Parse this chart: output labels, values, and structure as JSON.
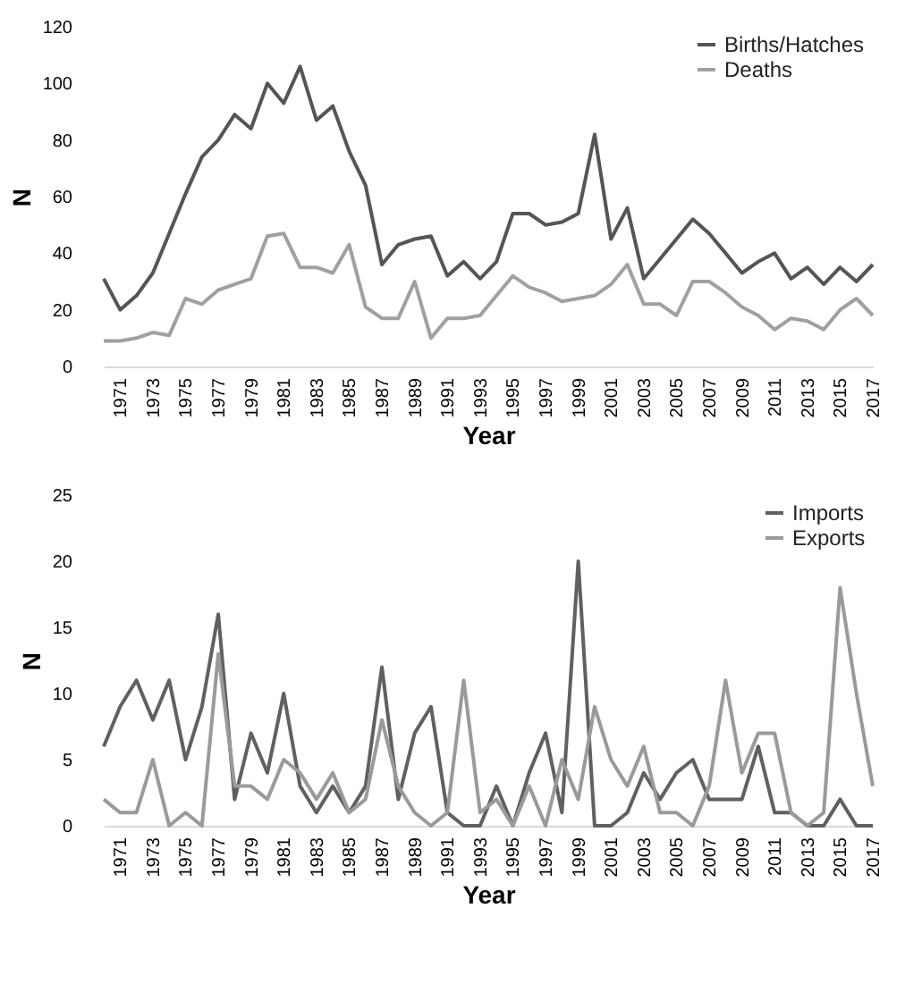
{
  "chart_data": [
    {
      "type": "line",
      "xlabel": "Year",
      "ylabel": "N",
      "x": [
        1970,
        1971,
        1972,
        1973,
        1974,
        1975,
        1976,
        1977,
        1978,
        1979,
        1980,
        1981,
        1982,
        1983,
        1984,
        1985,
        1986,
        1987,
        1988,
        1989,
        1990,
        1991,
        1992,
        1993,
        1994,
        1995,
        1996,
        1997,
        1998,
        1999,
        2000,
        2001,
        2002,
        2003,
        2004,
        2005,
        2006,
        2007,
        2008,
        2009,
        2010,
        2011,
        2012,
        2013,
        2014,
        2015,
        2016,
        2017
      ],
      "xlim": [
        1970,
        2017
      ],
      "xticks": [
        1971,
        1973,
        1975,
        1977,
        1979,
        1981,
        1983,
        1985,
        1987,
        1989,
        1991,
        1993,
        1995,
        1997,
        1999,
        2001,
        2003,
        2005,
        2007,
        2009,
        2011,
        2013,
        2015,
        2017
      ],
      "ylim": [
        0,
        120
      ],
      "yticks": [
        0,
        20,
        40,
        60,
        80,
        100,
        120
      ],
      "grid": false,
      "legend": "top right",
      "marker": "none",
      "line_style": "solid",
      "series": [
        {
          "name": "Births/Hatches",
          "color": "#555555",
          "values": [
            31,
            20,
            25,
            33,
            47,
            61,
            74,
            80,
            89,
            84,
            100,
            93,
            106,
            87,
            92,
            76,
            64,
            36,
            43,
            45,
            46,
            32,
            37,
            31,
            37,
            54,
            54,
            50,
            51,
            54,
            82,
            45,
            56,
            31,
            38,
            45,
            52,
            47,
            40,
            33,
            37,
            40,
            31,
            35,
            29,
            35,
            30,
            36
          ]
        },
        {
          "name": "Deaths",
          "color": "#a0a0a0",
          "values": [
            9,
            9,
            10,
            12,
            11,
            24,
            22,
            27,
            29,
            31,
            46,
            47,
            35,
            35,
            33,
            43,
            21,
            17,
            17,
            30,
            10,
            17,
            17,
            18,
            25,
            32,
            28,
            26,
            23,
            24,
            25,
            29,
            36,
            22,
            22,
            18,
            30,
            30,
            26,
            21,
            18,
            13,
            17,
            16,
            13,
            20,
            24,
            18
          ]
        }
      ]
    },
    {
      "type": "line",
      "xlabel": "Year",
      "ylabel": "N",
      "x": [
        1970,
        1971,
        1972,
        1973,
        1974,
        1975,
        1976,
        1977,
        1978,
        1979,
        1980,
        1981,
        1982,
        1983,
        1984,
        1985,
        1986,
        1987,
        1988,
        1989,
        1990,
        1991,
        1992,
        1993,
        1994,
        1995,
        1996,
        1997,
        1998,
        1999,
        2000,
        2001,
        2002,
        2003,
        2004,
        2005,
        2006,
        2007,
        2008,
        2009,
        2010,
        2011,
        2012,
        2013,
        2014,
        2015,
        2016,
        2017
      ],
      "xlim": [
        1970,
        2017
      ],
      "xticks": [
        1971,
        1973,
        1975,
        1977,
        1979,
        1981,
        1983,
        1985,
        1987,
        1989,
        1991,
        1993,
        1995,
        1997,
        1999,
        2001,
        2003,
        2005,
        2007,
        2009,
        2011,
        2013,
        2015,
        2017
      ],
      "ylim": [
        0,
        25
      ],
      "yticks": [
        0,
        5,
        10,
        15,
        20,
        25
      ],
      "grid": false,
      "legend": "top right",
      "marker": "none",
      "line_style": "solid",
      "series": [
        {
          "name": "Imports",
          "color": "#606060",
          "values": [
            6,
            9,
            11,
            8,
            11,
            5,
            9,
            16,
            2,
            7,
            4,
            10,
            3,
            1,
            3,
            1,
            3,
            12,
            2,
            7,
            9,
            1,
            0,
            0,
            3,
            0,
            4,
            7,
            1,
            20,
            0,
            0,
            1,
            4,
            2,
            4,
            5,
            2,
            2,
            2,
            6,
            1,
            1,
            0,
            0,
            2,
            0,
            0
          ]
        },
        {
          "name": "Exports",
          "color": "#9a9a9a",
          "values": [
            2,
            1,
            1,
            5,
            0,
            1,
            0,
            13,
            3,
            3,
            2,
            5,
            4,
            2,
            4,
            1,
            2,
            8,
            3,
            1,
            0,
            1,
            11,
            1,
            2,
            0,
            3,
            0,
            5,
            2,
            9,
            5,
            3,
            6,
            1,
            1,
            0,
            3,
            11,
            4,
            7,
            7,
            1,
            0,
            1,
            18,
            10,
            3
          ]
        }
      ]
    }
  ]
}
